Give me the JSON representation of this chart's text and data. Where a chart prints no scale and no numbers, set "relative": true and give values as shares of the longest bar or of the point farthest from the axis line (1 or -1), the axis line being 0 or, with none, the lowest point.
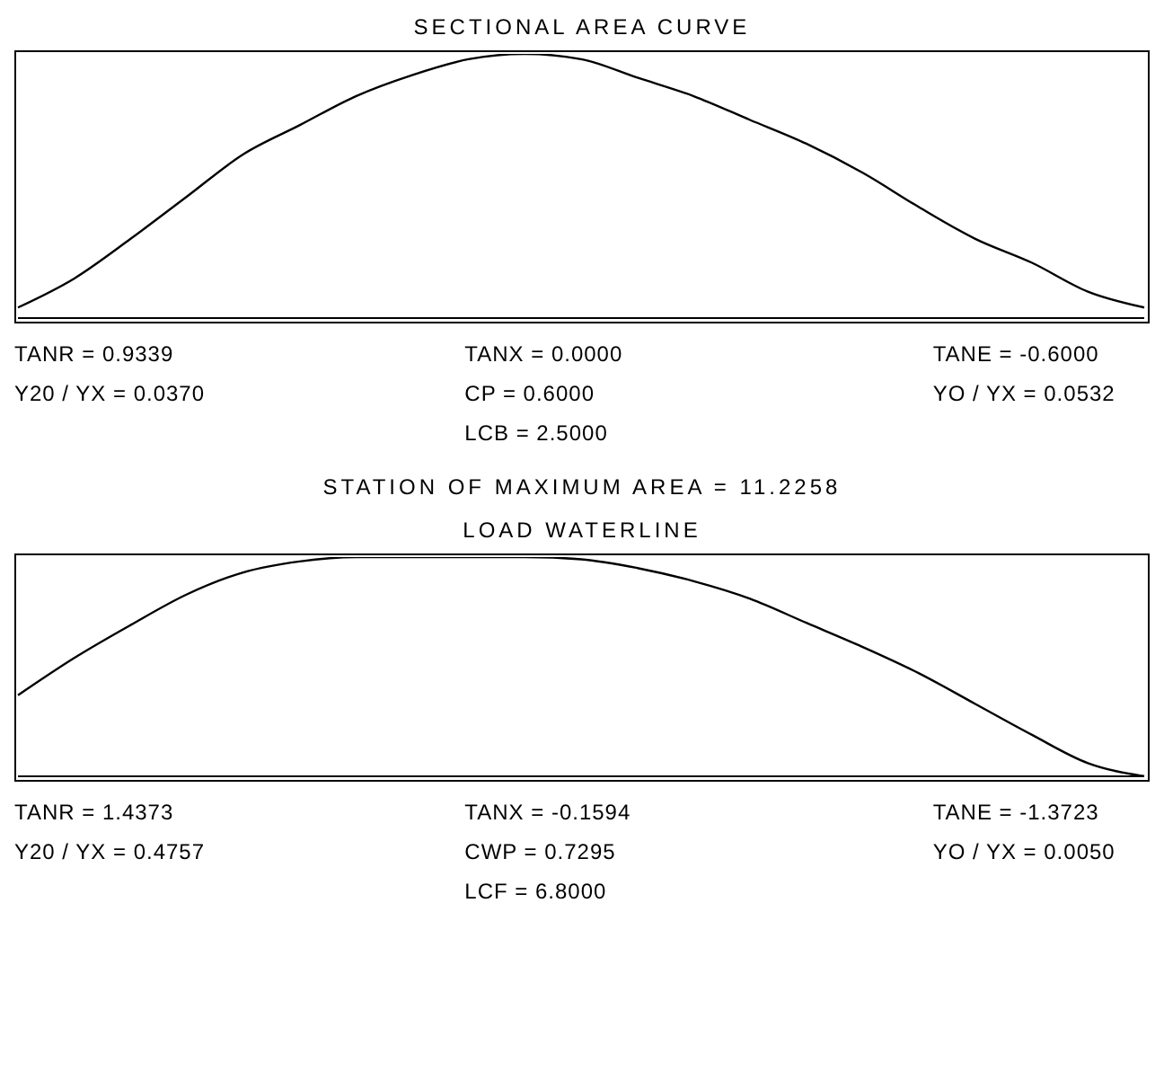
{
  "chart_data": [
    {
      "type": "line",
      "relative": true,
      "title": "SECTIONAL AREA CURVE",
      "categories": [
        null,
        null,
        null,
        null,
        null,
        null,
        null,
        null,
        null,
        null,
        null,
        null,
        null,
        null,
        null,
        null,
        null,
        null,
        null,
        null,
        null
      ],
      "series": [
        {
          "color": "#000000",
          "values": [
            0.04,
            0.15,
            0.3,
            0.46,
            0.62,
            0.73,
            0.84,
            0.92,
            0.98,
            1.0,
            0.98,
            0.91,
            0.84,
            0.75,
            0.66,
            0.55,
            0.42,
            0.3,
            0.21,
            0.1,
            0.04
          ]
        }
      ],
      "marker": "none",
      "grid": false,
      "legend": false,
      "tick_labels": false,
      "annotations": [
        "TANR = 0.9339",
        "TANX = 0.0000",
        "TANE = -0.6000",
        "Y20 / YX = 0.0370",
        "CP = 0.6000",
        "YO / YX = 0.0532",
        "LCB = 2.5000",
        "STATION OF MAXIMUM AREA = 11.2258"
      ]
    },
    {
      "type": "line",
      "relative": true,
      "title": "LOAD WATERLINE",
      "categories": [
        null,
        null,
        null,
        null,
        null,
        null,
        null,
        null,
        null,
        null,
        null,
        null,
        null,
        null,
        null,
        null,
        null,
        null,
        null,
        null,
        null
      ],
      "series": [
        {
          "color": "#000000",
          "values": [
            0.37,
            0.54,
            0.69,
            0.83,
            0.93,
            0.98,
            1.0,
            1.0,
            1.0,
            1.0,
            0.99,
            0.95,
            0.89,
            0.81,
            0.7,
            0.59,
            0.47,
            0.33,
            0.19,
            0.06,
            0
          ]
        }
      ],
      "marker": "none",
      "grid": false,
      "legend": false,
      "tick_labels": false,
      "annotations": [
        "TANR = 1.4373",
        "TANX = -0.1594",
        "TANE = -1.3723",
        "Y20 / YX = 0.4757",
        "CWP = 0.7295",
        "YO / YX = 0.0050",
        "LCF = 6.8000"
      ]
    }
  ]
}
